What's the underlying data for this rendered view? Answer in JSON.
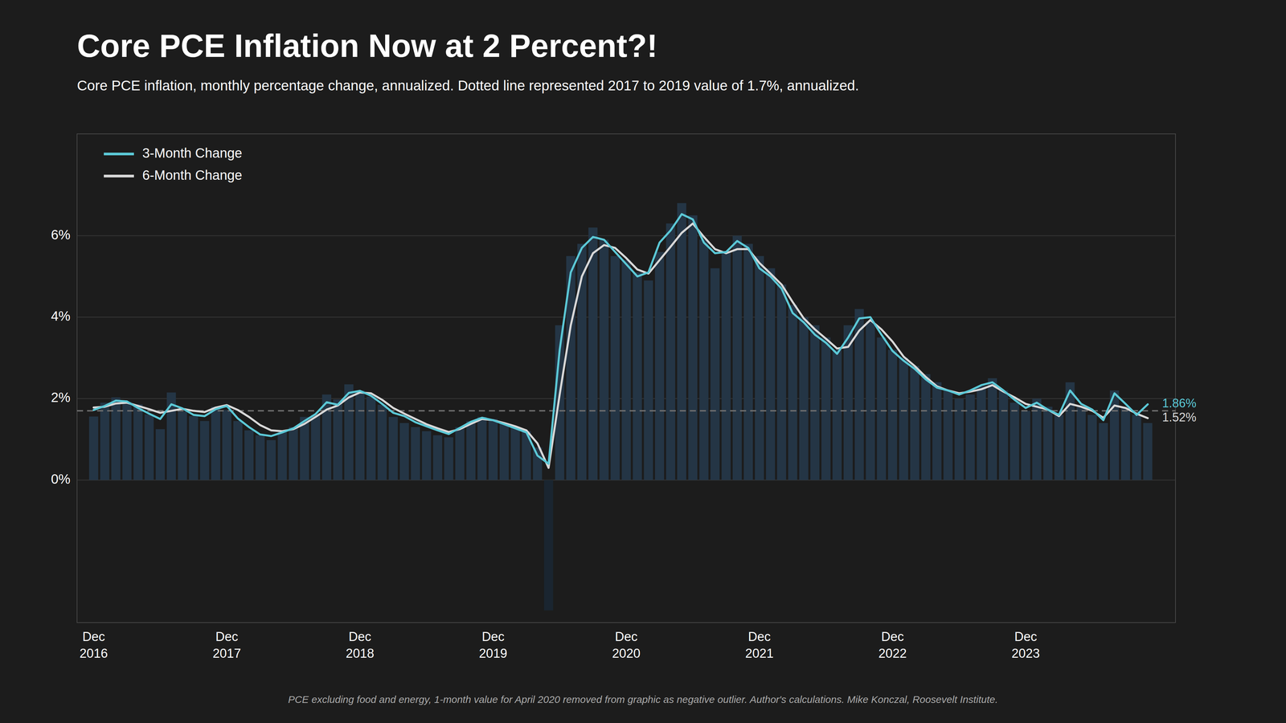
{
  "chart_data": {
    "type": "bar",
    "title": "Core PCE Inflation Now at 2 Percent?!",
    "subtitle": "Core PCE inflation, monthly percentage change, annualized. Dotted line represented 2017 to 2019 value of 1.7%, annualized.",
    "footnote": "PCE excluding food and energy, 1-month value for April 2020 removed from graphic as negative outlier. Author's calculations. Mike Konczal, Roosevelt Institute.",
    "categories": [
      "Dec\n2016",
      null,
      null,
      null,
      null,
      null,
      null,
      null,
      null,
      null,
      null,
      null,
      "Dec\n2017",
      null,
      null,
      null,
      null,
      null,
      null,
      null,
      null,
      null,
      null,
      null,
      "Dec\n2018",
      null,
      null,
      null,
      null,
      null,
      null,
      null,
      null,
      null,
      null,
      null,
      "Dec\n2019",
      null,
      null,
      null,
      null,
      null,
      null,
      null,
      null,
      null,
      null,
      null,
      "Dec\n2020",
      null,
      null,
      null,
      null,
      null,
      null,
      null,
      null,
      null,
      null,
      null,
      "Dec\n2021",
      null,
      null,
      null,
      null,
      null,
      null,
      null,
      null,
      null,
      null,
      null,
      "Dec\n2022",
      null,
      null,
      null,
      null,
      null,
      null,
      null,
      null,
      null,
      null,
      null,
      "Dec\n2023",
      null,
      null,
      null,
      null,
      null,
      null,
      null,
      null,
      null,
      null,
      null
    ],
    "series": [
      {
        "type": "bar",
        "colors": [
          "#243545",
          "#243545",
          "#243545",
          "#243545",
          "#243545",
          "#243545",
          "#243545",
          "#243545",
          "#243545",
          "#243545",
          "#243545",
          "#243545",
          "#243545",
          "#243545",
          "#243545",
          "#243545",
          "#243545",
          "#243545",
          "#243545",
          "#243545",
          "#243545",
          "#243545",
          "#243545",
          "#243545",
          "#243545",
          "#243545",
          "#243545",
          "#243545",
          "#243545",
          "#243545",
          "#243545",
          "#243545",
          "#243545",
          "#243545",
          "#243545",
          "#243545",
          "#243545",
          "#243545",
          "#243545",
          "#243545",
          "#243545",
          "#1a2530",
          "#243545",
          "#243545",
          "#243545",
          "#243545",
          "#243545",
          "#243545",
          "#243545",
          "#243545",
          "#243545",
          "#243545",
          "#243545",
          "#243545",
          "#243545",
          "#243545",
          "#243545",
          "#243545",
          "#243545",
          "#243545",
          "#243545",
          "#243545",
          "#243545",
          "#243545",
          "#243545",
          "#243545",
          "#243545",
          "#243545",
          "#243545",
          "#243545",
          "#243545",
          "#243545",
          "#243545",
          "#243545",
          "#243545",
          "#243545",
          "#243545",
          "#243545",
          "#243545",
          "#243545",
          "#243545",
          "#243545",
          "#243545",
          "#243545",
          "#243545",
          "#243545",
          "#243545",
          "#243545",
          "#243545",
          "#243545",
          "#243545",
          "#243545",
          "#243545",
          "#243545",
          "#243545",
          "#243545"
        ],
        "values": [
          1.56,
          1.9,
          2.03,
          1.92,
          1.86,
          1.61,
          1.25,
          2.15,
          1.68,
          1.57,
          1.45,
          1.8,
          1.72,
          1.45,
          1.22,
          1.1,
          0.98,
          1.2,
          1.3,
          1.55,
          1.6,
          2.1,
          1.98,
          2.35,
          2.2,
          2.05,
          1.85,
          1.55,
          1.4,
          1.3,
          1.2,
          1.1,
          1.05,
          1.3,
          1.45,
          1.55,
          1.5,
          1.4,
          1.3,
          1.2,
          0.8,
          -3.2,
          3.8,
          5.5,
          5.8,
          6.2,
          5.9,
          5.5,
          5.4,
          5.1,
          4.9,
          5.6,
          6.3,
          6.8,
          6.5,
          5.9,
          5.2,
          5.6,
          6.0,
          5.8,
          5.5,
          5.2,
          4.8,
          4.3,
          4.0,
          3.8,
          3.5,
          3.2,
          3.8,
          4.2,
          3.9,
          3.5,
          3.2,
          3.0,
          2.8,
          2.6,
          2.4,
          2.2,
          2.0,
          2.1,
          2.3,
          2.5,
          2.2,
          1.9,
          1.7,
          2.0,
          1.8,
          1.6,
          2.4,
          1.8,
          1.6,
          1.4,
          2.2,
          1.8,
          1.6,
          1.4
        ]
      },
      {
        "type": "line",
        "name": "3-Month Change",
        "color": "#5bc8d6",
        "values": [
          1.72,
          1.82,
          1.95,
          1.93,
          1.77,
          1.63,
          1.5,
          1.86,
          1.76,
          1.6,
          1.57,
          1.74,
          1.82,
          1.51,
          1.3,
          1.12,
          1.08,
          1.17,
          1.27,
          1.45,
          1.62,
          1.91,
          1.85,
          2.14,
          2.19,
          2.07,
          1.87,
          1.65,
          1.57,
          1.42,
          1.32,
          1.22,
          1.13,
          1.28,
          1.43,
          1.53,
          1.47,
          1.37,
          1.27,
          1.17,
          0.6,
          0.4,
          3.2,
          5.1,
          5.7,
          5.97,
          5.9,
          5.6,
          5.3,
          5.0,
          5.1,
          5.83,
          6.13,
          6.53,
          6.4,
          5.83,
          5.57,
          5.6,
          5.87,
          5.7,
          5.2,
          5.0,
          4.7,
          4.1,
          3.87,
          3.57,
          3.37,
          3.1,
          3.5,
          3.97,
          4.0,
          3.57,
          3.17,
          2.93,
          2.73,
          2.47,
          2.27,
          2.2,
          2.1,
          2.2,
          2.33,
          2.4,
          2.2,
          1.97,
          1.77,
          1.9,
          1.73,
          1.6,
          2.2,
          1.87,
          1.73,
          1.47,
          2.13,
          1.87,
          1.6,
          1.86
        ]
      },
      {
        "type": "line",
        "name": "6-Month Change",
        "color": "#d8d8d8",
        "values": [
          1.78,
          1.8,
          1.88,
          1.9,
          1.82,
          1.74,
          1.65,
          1.7,
          1.75,
          1.7,
          1.67,
          1.78,
          1.84,
          1.72,
          1.55,
          1.35,
          1.22,
          1.2,
          1.25,
          1.38,
          1.55,
          1.73,
          1.83,
          2.03,
          2.15,
          2.13,
          1.97,
          1.77,
          1.63,
          1.5,
          1.37,
          1.27,
          1.18,
          1.25,
          1.38,
          1.5,
          1.47,
          1.4,
          1.32,
          1.22,
          0.9,
          0.3,
          2.1,
          3.8,
          5.0,
          5.57,
          5.77,
          5.7,
          5.45,
          5.17,
          5.07,
          5.4,
          5.73,
          6.07,
          6.3,
          5.97,
          5.67,
          5.57,
          5.67,
          5.67,
          5.33,
          5.07,
          4.8,
          4.37,
          3.97,
          3.7,
          3.47,
          3.23,
          3.27,
          3.67,
          3.93,
          3.7,
          3.4,
          3.03,
          2.8,
          2.53,
          2.3,
          2.2,
          2.13,
          2.17,
          2.23,
          2.33,
          2.17,
          2.03,
          1.87,
          1.8,
          1.73,
          1.57,
          1.87,
          1.8,
          1.7,
          1.53,
          1.83,
          1.77,
          1.63,
          1.52
        ]
      }
    ],
    "reference_lines": [
      {
        "value": 1.7,
        "color": "#707070",
        "line_style": "dashed"
      }
    ],
    "annotations": [
      {
        "text": "1.86%",
        "y": 1.86,
        "color": "#5bc8d6"
      },
      {
        "text": "1.52%",
        "y": 1.52,
        "color": "#d8d8d8"
      }
    ],
    "ylim": [
      -3.5,
      8.5
    ],
    "yticks": [
      {
        "value": 0,
        "label": "0%"
      },
      {
        "value": 2,
        "label": "2%"
      },
      {
        "value": 4,
        "label": "4%"
      },
      {
        "value": 6,
        "label": "6%"
      }
    ],
    "grid": true,
    "legend": "top-left"
  }
}
